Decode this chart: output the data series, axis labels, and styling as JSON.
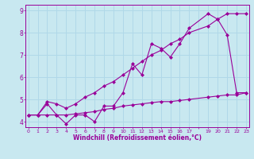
{
  "x": [
    0,
    1,
    2,
    3,
    4,
    5,
    6,
    7,
    8,
    9,
    10,
    11,
    12,
    13,
    14,
    15,
    16,
    17,
    19,
    20,
    21,
    22,
    23
  ],
  "line_top": [
    4.3,
    4.3,
    4.9,
    4.8,
    4.6,
    4.8,
    5.1,
    5.3,
    5.6,
    5.8,
    6.1,
    6.4,
    6.7,
    7.0,
    7.2,
    7.5,
    7.7,
    8.0,
    8.3,
    8.6,
    8.85,
    8.85,
    8.85
  ],
  "line_mid": [
    4.3,
    4.3,
    4.8,
    4.3,
    3.9,
    4.3,
    4.3,
    4.0,
    4.7,
    4.7,
    5.3,
    6.6,
    6.1,
    7.5,
    7.3,
    6.9,
    7.5,
    8.2,
    8.85,
    8.6,
    7.9,
    5.3,
    5.3
  ],
  "line_bot": [
    4.3,
    4.3,
    4.3,
    4.3,
    4.3,
    4.35,
    4.4,
    4.45,
    4.55,
    4.6,
    4.7,
    4.75,
    4.8,
    4.85,
    4.9,
    4.9,
    4.95,
    5.0,
    5.1,
    5.15,
    5.2,
    5.2,
    5.3
  ],
  "color": "#990099",
  "bg_color": "#c8e8f0",
  "grid_color": "#b0d8e8",
  "ylim_min": 3.75,
  "ylim_max": 9.25,
  "yticks": [
    4,
    5,
    6,
    7,
    8,
    9
  ],
  "xlim_min": -0.3,
  "xlim_max": 23.3,
  "xlabel": "Windchill (Refroidissement éolien,°C)"
}
